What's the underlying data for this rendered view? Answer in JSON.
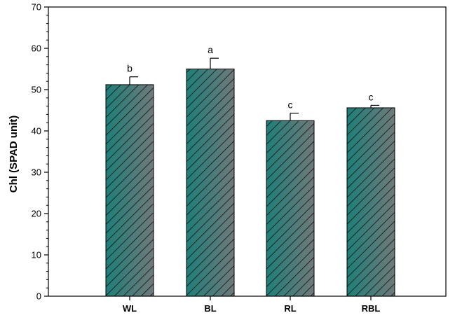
{
  "chart_data": {
    "type": "bar",
    "title": "",
    "xlabel": "",
    "ylabel": "Chl (SPAD unit)",
    "categories": [
      "WL",
      "BL",
      "RL",
      "RBL"
    ],
    "values": [
      51.2,
      55.0,
      42.5,
      45.6
    ],
    "errors": [
      1.9,
      2.6,
      1.8,
      0.6
    ],
    "significance": [
      "b",
      "a",
      "c",
      "c"
    ],
    "ylim": [
      0,
      70
    ],
    "yticks": [
      0,
      10,
      20,
      30,
      40,
      50,
      60,
      70
    ],
    "ytick_labels": [
      "0",
      "10",
      "20",
      "30",
      "40",
      "50",
      "60",
      "70"
    ],
    "grid": false,
    "bar_color_left": "#1e7e78",
    "bar_color_right": "#6f7a7b",
    "hatch_color": "#111111"
  }
}
